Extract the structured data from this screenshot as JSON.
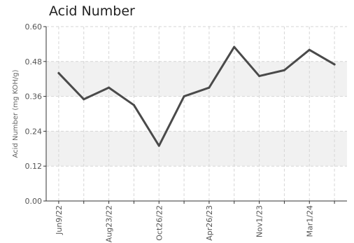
{
  "chart_data": {
    "type": "line",
    "title": "Acid Number",
    "xlabel": "",
    "ylabel": "Acid Number (mg KOH/g)",
    "ylim": [
      0,
      0.6
    ],
    "yticks": [
      "0.00",
      "0.12",
      "0.24",
      "0.36",
      "0.48",
      "0.60"
    ],
    "xtick_labels": [
      "Jun9/22",
      "Aug23/22",
      "Oct26/22",
      "Apr26/23",
      "Nov1/23",
      "Mar1/24"
    ],
    "grid": true,
    "series": [
      {
        "values": [
          0.44,
          0.35,
          0.39,
          0.33,
          0.19,
          0.36,
          0.39,
          0.53,
          0.43,
          0.45,
          0.52,
          0.47
        ]
      }
    ],
    "colors": {
      "line": "#4a4a4a",
      "band": "#f1f1f1",
      "grid": "#d6d6d6",
      "axis": "#333333"
    }
  }
}
